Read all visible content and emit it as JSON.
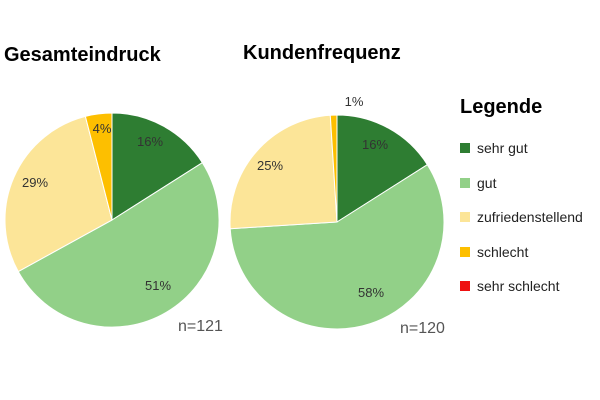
{
  "chart_data": [
    {
      "type": "pie",
      "title": "Gesamteindruck",
      "categories": [
        "sehr gut",
        "gut",
        "zufriedenstellend",
        "schlecht",
        "sehr schlecht"
      ],
      "values": [
        16,
        51,
        29,
        4,
        0
      ],
      "labels": [
        "16%",
        "51%",
        "29%",
        "4%",
        ""
      ],
      "note": "n=121"
    },
    {
      "type": "pie",
      "title": "Kundenfrequenz",
      "categories": [
        "sehr gut",
        "gut",
        "zufriedenstellend",
        "schlecht",
        "sehr schlecht"
      ],
      "values": [
        16,
        58,
        25,
        1,
        0
      ],
      "labels": [
        "16%",
        "58%",
        "25%",
        "1%",
        ""
      ],
      "note": "n=120"
    }
  ],
  "legend": {
    "title": "Legende",
    "placement": "right",
    "items": [
      {
        "label": "sehr gut",
        "color": "#2e7d32"
      },
      {
        "label": "gut",
        "color": "#92d088"
      },
      {
        "label": "zufriedenstellend",
        "color": "#fce598"
      },
      {
        "label": "schlecht",
        "color": "#fdbf00"
      },
      {
        "label": "sehr schlecht",
        "color": "#ee1111"
      }
    ]
  }
}
